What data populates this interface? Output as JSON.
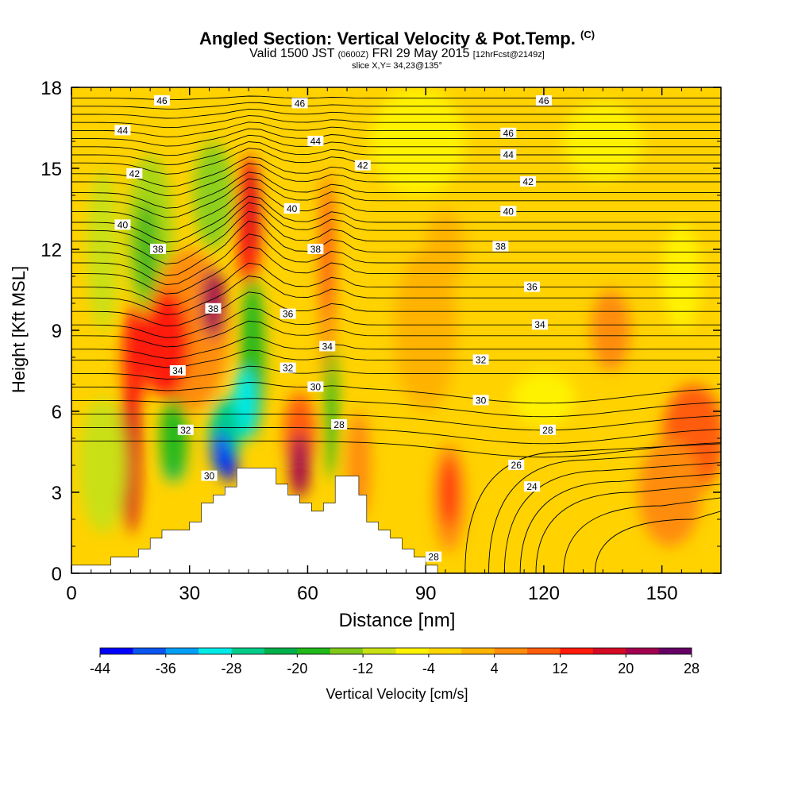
{
  "chart_data": {
    "type": "heatmap",
    "title": "Angled Section: Vertical Velocity & Pot.Temp.",
    "title_units": "(C)",
    "subtitle": {
      "valid": "Valid 1500 JST",
      "utc": "(0600Z)",
      "date": "FRI 29 May 2015",
      "forecast": "[12hrFcst@2149z]"
    },
    "slice": "slice X,Y= 34,23@135°",
    "xlabel": "Distance [nm]",
    "ylabel": "Height [Kft MSL]",
    "xlim": [
      0,
      165
    ],
    "ylim": [
      0,
      18
    ],
    "xticks": [
      0,
      30,
      60,
      90,
      120,
      150
    ],
    "yticks": [
      0,
      3,
      6,
      9,
      12,
      15,
      18
    ],
    "colorbar": {
      "label": "Vertical Velocity [cm/s]",
      "tick_labels": [
        "-44",
        "-36",
        "-28",
        "-20",
        "-12",
        "-4",
        "4",
        "12",
        "20",
        "28"
      ],
      "colors": [
        "#0000ff",
        "#0a55f0",
        "#009ff5",
        "#00ebe8",
        "#00cc8a",
        "#00b04a",
        "#21b81a",
        "#80c91c",
        "#c9e015",
        "#fff200",
        "#ffd500",
        "#ffb300",
        "#ff8c0a",
        "#ff5c0a",
        "#ff1a0a",
        "#d40a24",
        "#a3004f",
        "#660066"
      ]
    },
    "terrain_profile": [
      [
        0,
        0.3
      ],
      [
        10,
        0.3
      ],
      [
        10,
        0.6
      ],
      [
        17,
        0.6
      ],
      [
        17,
        0.9
      ],
      [
        20,
        0.9
      ],
      [
        20,
        1.3
      ],
      [
        23,
        1.3
      ],
      [
        23,
        1.6
      ],
      [
        30,
        1.6
      ],
      [
        30,
        1.9
      ],
      [
        33,
        1.9
      ],
      [
        33,
        2.6
      ],
      [
        36,
        2.6
      ],
      [
        36,
        2.9
      ],
      [
        39,
        2.9
      ],
      [
        39,
        3.2
      ],
      [
        42,
        3.2
      ],
      [
        42,
        3.9
      ],
      [
        52,
        3.9
      ],
      [
        52,
        3.3
      ],
      [
        55,
        3.3
      ],
      [
        55,
        2.9
      ],
      [
        58,
        2.9
      ],
      [
        58,
        2.6
      ],
      [
        61,
        2.6
      ],
      [
        61,
        2.3
      ],
      [
        64,
        2.3
      ],
      [
        64,
        2.6
      ],
      [
        67,
        2.6
      ],
      [
        67,
        3.6
      ],
      [
        73,
        3.6
      ],
      [
        73,
        2.9
      ],
      [
        75,
        2.9
      ],
      [
        75,
        1.9
      ],
      [
        78,
        1.9
      ],
      [
        78,
        1.6
      ],
      [
        81,
        1.6
      ],
      [
        81,
        1.3
      ],
      [
        84,
        1.3
      ],
      [
        84,
        0.9
      ],
      [
        87,
        0.9
      ],
      [
        87,
        0.6
      ],
      [
        90,
        0.6
      ],
      [
        90,
        0.3
      ],
      [
        93,
        0.3
      ],
      [
        93,
        0
      ]
    ],
    "isentropes": [
      {
        "value": 46,
        "y": 17.3,
        "label_x": 23,
        "label_y": 17.5
      },
      {
        "value": 46,
        "y": 17.3,
        "label_x": 58,
        "label_y": 17.4
      },
      {
        "value": 46,
        "y": 17.3,
        "label_x": 120,
        "label_y": 17.5
      },
      {
        "value": 44,
        "y": 16.4,
        "label_x": 13,
        "label_y": 16.4
      },
      {
        "value": 44,
        "y": 16.4,
        "label_x": 62,
        "label_y": 16.0
      },
      {
        "value": 46,
        "y": 16.4,
        "label_x": 111,
        "label_y": 16.3
      },
      {
        "value": 44,
        "y": 15.5,
        "label_x": 111,
        "label_y": 15.5
      },
      {
        "value": 42,
        "y": 14.8,
        "label_x": 16,
        "label_y": 14.8
      },
      {
        "value": 42,
        "y": 14.8,
        "label_x": 74,
        "label_y": 15.1
      },
      {
        "value": 42,
        "y": 14.5,
        "label_x": 116,
        "label_y": 14.5
      },
      {
        "value": 40,
        "y": 13.5,
        "label_x": 56,
        "label_y": 13.5
      },
      {
        "value": 40,
        "y": 13.4,
        "label_x": 111,
        "label_y": 13.4
      },
      {
        "value": 40,
        "y": 12.9,
        "label_x": 13,
        "label_y": 12.9
      },
      {
        "value": 38,
        "y": 12.0,
        "label_x": 22,
        "label_y": 12.0
      },
      {
        "value": 38,
        "y": 12.0,
        "label_x": 62,
        "label_y": 12.0
      },
      {
        "value": 38,
        "y": 12.0,
        "label_x": 109,
        "label_y": 12.1
      },
      {
        "value": 36,
        "y": 10.7,
        "label_x": 117,
        "label_y": 10.6
      },
      {
        "value": 38,
        "y": 9.8,
        "label_x": 36,
        "label_y": 9.8
      },
      {
        "value": 36,
        "y": 9.6,
        "label_x": 55,
        "label_y": 9.6
      },
      {
        "value": 34,
        "y": 9.2,
        "label_x": 119,
        "label_y": 9.2
      },
      {
        "value": 34,
        "y": 8.4,
        "label_x": 65,
        "label_y": 8.4
      },
      {
        "value": 32,
        "y": 7.9,
        "label_x": 104,
        "label_y": 7.9
      },
      {
        "value": 32,
        "y": 7.6,
        "label_x": 55,
        "label_y": 7.6
      },
      {
        "value": 34,
        "y": 7.5,
        "label_x": 27,
        "label_y": 7.5
      },
      {
        "value": 30,
        "y": 6.9,
        "label_x": 62,
        "label_y": 6.9
      },
      {
        "value": 30,
        "y": 6.4,
        "label_x": 104,
        "label_y": 6.4
      },
      {
        "value": 28,
        "y": 5.5,
        "label_x": 68,
        "label_y": 5.5
      },
      {
        "value": 28,
        "y": 5.3,
        "label_x": 121,
        "label_y": 5.3
      },
      {
        "value": 32,
        "y": 5.3,
        "label_x": 29,
        "label_y": 5.3
      },
      {
        "value": 26,
        "y": 4.0,
        "label_x": 113,
        "label_y": 4.0
      },
      {
        "value": 30,
        "y": 3.6,
        "label_x": 35,
        "label_y": 3.6
      },
      {
        "value": 24,
        "y": 3.2,
        "label_x": 117,
        "label_y": 3.2
      },
      {
        "value": 28,
        "y": 0.6,
        "label_x": 92,
        "label_y": 0.6
      }
    ]
  }
}
